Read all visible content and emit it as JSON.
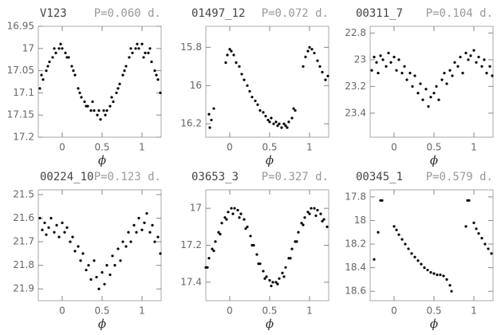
{
  "chart_data": [
    {
      "type": "scatter",
      "title": "V123",
      "subtitle": "P=0.060 d.",
      "x_label": "ϕ",
      "color": "#000000",
      "y_inverted": true,
      "xlim": [
        -0.3,
        1.24
      ],
      "xticks": [
        0,
        0.5,
        1
      ],
      "ylim": [
        16.95,
        17.2
      ],
      "yticks": [
        16.95,
        17,
        17.05,
        17.1,
        17.15,
        17.2
      ],
      "x": [
        -0.28,
        -0.24,
        -0.2,
        -0.16,
        -0.12,
        -0.08,
        -0.04,
        0,
        0.04,
        0.08,
        0.12,
        0.16,
        0.2,
        0.24,
        0.28,
        0.32,
        0.36,
        0.4,
        0.44,
        0.48,
        0.52,
        0.56,
        0.6,
        0.64,
        0.68,
        0.72,
        0.76,
        0.8,
        0.84,
        0.88,
        0.92,
        0.96,
        1,
        1.04,
        1.08,
        1.12,
        1.16,
        1.2,
        1.23,
        -0.26,
        -0.18,
        -0.1,
        -0.02,
        0.06,
        0.14,
        0.22,
        0.3,
        0.38,
        0.46,
        0.54,
        0.62,
        0.7,
        0.78,
        0.86,
        0.94,
        1.02,
        1.1,
        1.18
      ],
      "values": [
        17.09,
        17.07,
        17.05,
        17.03,
        17.02,
        17.01,
        17.0,
        17.0,
        17.01,
        17.02,
        17.04,
        17.06,
        17.09,
        17.11,
        17.12,
        17.13,
        17.14,
        17.14,
        17.15,
        17.16,
        17.14,
        17.14,
        17.13,
        17.12,
        17.1,
        17.08,
        17.06,
        17.04,
        17.02,
        17.01,
        17.0,
        17.0,
        16.99,
        17.01,
        17.01,
        17.03,
        17.05,
        17.07,
        17.1,
        17.06,
        17.04,
        17.0,
        16.99,
        17.02,
        17.05,
        17.1,
        17.13,
        17.12,
        17.14,
        17.15,
        17.11,
        17.09,
        17.05,
        17.0,
        16.99,
        17.02,
        17.0,
        17.06
      ]
    },
    {
      "type": "scatter",
      "title": "01497_12",
      "subtitle": "P=0.072 d.",
      "x_label": "ϕ",
      "color": "#000000",
      "y_inverted": true,
      "xlim": [
        -0.3,
        1.24
      ],
      "xticks": [
        0,
        0.5,
        1
      ],
      "ylim": [
        15.69,
        16.27
      ],
      "yticks": [
        15.8,
        16,
        16.2
      ],
      "x": [
        -0.26,
        -0.25,
        -0.23,
        -0.2,
        -0.05,
        -0.03,
        0,
        0.02,
        0.05,
        0.08,
        0.12,
        0.15,
        0.18,
        0.22,
        0.25,
        0.28,
        0.32,
        0.35,
        0.38,
        0.42,
        0.45,
        0.48,
        0.5,
        0.52,
        0.55,
        0.58,
        0.6,
        0.62,
        0.65,
        0.68,
        0.7,
        0.72,
        0.74,
        0.78,
        0.8,
        0.82,
        0.92,
        0.95,
        0.98,
        1.0,
        1.03,
        1.06,
        1.1,
        1.13,
        1.16,
        1.2,
        1.23
      ],
      "values": [
        16.15,
        16.22,
        16.18,
        16.12,
        15.88,
        15.84,
        15.81,
        15.82,
        15.84,
        15.88,
        15.9,
        15.94,
        15.97,
        16.0,
        16.03,
        16.06,
        16.08,
        16.1,
        16.13,
        16.14,
        16.16,
        16.18,
        16.19,
        16.17,
        16.2,
        16.19,
        16.21,
        16.2,
        16.22,
        16.2,
        16.21,
        16.22,
        16.19,
        16.17,
        16.12,
        16.13,
        15.9,
        15.85,
        15.82,
        15.8,
        15.81,
        15.83,
        15.87,
        15.9,
        15.93,
        15.97,
        15.95
      ]
    },
    {
      "type": "scatter",
      "title": "00311_7",
      "subtitle": "P=0.104 d.",
      "x_label": "ϕ",
      "color": "#000000",
      "y_inverted": true,
      "xlim": [
        -0.3,
        1.24
      ],
      "xticks": [
        0,
        0.5,
        1
      ],
      "ylim": [
        22.75,
        23.58
      ],
      "yticks": [
        22.8,
        23,
        23.2,
        23.4
      ],
      "x": [
        -0.28,
        -0.25,
        -0.22,
        -0.2,
        -0.17,
        -0.14,
        -0.1,
        -0.07,
        -0.04,
        0,
        0.03,
        0.06,
        0.1,
        0.13,
        0.16,
        0.2,
        0.23,
        0.26,
        0.3,
        0.33,
        0.36,
        0.4,
        0.43,
        0.46,
        0.5,
        0.53,
        0.56,
        0.6,
        0.63,
        0.66,
        0.7,
        0.73,
        0.76,
        0.8,
        0.83,
        0.86,
        0.9,
        0.93,
        0.96,
        1.0,
        1.03,
        1.06,
        1.1,
        1.13,
        1.16,
        1.2,
        1.23
      ],
      "values": [
        23.08,
        22.98,
        23.02,
        23.1,
        22.97,
        23.0,
        23.05,
        22.95,
        23.02,
        22.98,
        23.08,
        23.0,
        23.1,
        23.05,
        23.15,
        23.1,
        23.2,
        23.12,
        23.25,
        23.18,
        23.3,
        23.22,
        23.35,
        23.28,
        23.25,
        23.2,
        23.3,
        23.15,
        23.1,
        23.18,
        23.08,
        23.12,
        23.02,
        23.05,
        22.98,
        23.1,
        22.95,
        23.0,
        22.97,
        22.93,
        23.02,
        22.98,
        23.05,
        23.0,
        23.1,
        23.05,
        23.12
      ]
    },
    {
      "type": "scatter",
      "title": "00224_10",
      "subtitle": "P=0.123 d.",
      "x_label": "ϕ",
      "color": "#000000",
      "y_inverted": true,
      "xlim": [
        -0.3,
        1.24
      ],
      "xticks": [
        0,
        0.5,
        1
      ],
      "ylim": [
        21.48,
        21.95
      ],
      "yticks": [
        21.5,
        21.6,
        21.7,
        21.8,
        21.9
      ],
      "x": [
        -0.28,
        -0.25,
        -0.22,
        -0.2,
        -0.17,
        -0.14,
        -0.1,
        -0.07,
        -0.04,
        0,
        0.03,
        0.06,
        0.1,
        0.13,
        0.16,
        0.2,
        0.23,
        0.26,
        0.3,
        0.33,
        0.36,
        0.4,
        0.43,
        0.46,
        0.5,
        0.53,
        0.56,
        0.6,
        0.63,
        0.66,
        0.7,
        0.73,
        0.76,
        0.8,
        0.83,
        0.86,
        0.9,
        0.93,
        0.96,
        1.0,
        1.03,
        1.06,
        1.1,
        1.13,
        1.16,
        1.2,
        1.23
      ],
      "values": [
        21.6,
        21.65,
        21.62,
        21.67,
        21.64,
        21.6,
        21.66,
        21.63,
        21.68,
        21.62,
        21.66,
        21.64,
        21.7,
        21.68,
        21.74,
        21.72,
        21.78,
        21.75,
        21.82,
        21.8,
        21.86,
        21.78,
        21.85,
        21.9,
        21.83,
        21.88,
        21.8,
        21.84,
        21.76,
        21.8,
        21.73,
        21.78,
        21.7,
        21.72,
        21.66,
        21.7,
        21.63,
        21.66,
        21.6,
        21.65,
        21.62,
        21.58,
        21.66,
        21.63,
        21.7,
        21.68,
        21.75
      ]
    },
    {
      "type": "scatter",
      "title": "03653_3",
      "subtitle": "P=0.327 d.",
      "x_label": "ϕ",
      "color": "#000000",
      "y_inverted": true,
      "xlim": [
        -0.3,
        1.24
      ],
      "xticks": [
        0,
        0.5,
        1
      ],
      "ylim": [
        16.9,
        17.5
      ],
      "yticks": [
        17,
        17.2,
        17.4
      ],
      "x": [
        -0.3,
        -0.26,
        -0.22,
        -0.18,
        -0.14,
        -0.1,
        -0.06,
        -0.02,
        0.02,
        0.06,
        0.1,
        0.14,
        0.18,
        0.22,
        0.26,
        0.3,
        0.34,
        0.38,
        0.42,
        0.46,
        0.5,
        0.54,
        0.58,
        0.62,
        0.66,
        0.7,
        0.74,
        0.78,
        0.82,
        0.86,
        0.9,
        0.94,
        0.98,
        1.02,
        1.06,
        1.1,
        1.14,
        1.18,
        1.22,
        -0.28,
        -0.2,
        -0.12,
        -0.04,
        0.04,
        0.12,
        0.2,
        0.28,
        0.36,
        0.44,
        0.52,
        0.6,
        0.68,
        0.76,
        0.84,
        0.92,
        1.0,
        1.08,
        1.16
      ],
      "values": [
        17.32,
        17.27,
        17.22,
        17.18,
        17.13,
        17.08,
        17.05,
        17.02,
        17.0,
        17.0,
        17.01,
        17.03,
        17.06,
        17.1,
        17.15,
        17.2,
        17.25,
        17.3,
        17.34,
        17.37,
        17.39,
        17.4,
        17.4,
        17.38,
        17.35,
        17.32,
        17.27,
        17.22,
        17.18,
        17.13,
        17.08,
        17.05,
        17.02,
        17.0,
        17.0,
        17.01,
        17.03,
        17.06,
        17.1,
        17.32,
        17.23,
        17.14,
        17.06,
        17.03,
        17.05,
        17.11,
        17.2,
        17.3,
        17.38,
        17.42,
        17.41,
        17.37,
        17.27,
        17.18,
        17.09,
        17.03,
        17.04,
        17.07
      ]
    },
    {
      "type": "scatter",
      "title": "00345_1",
      "subtitle": "P=0.579 d.",
      "x_label": "ϕ",
      "color": "#000000",
      "y_inverted": true,
      "xlim": [
        -0.3,
        1.24
      ],
      "xticks": [
        0,
        0.5,
        1
      ],
      "ylim": [
        17.74,
        18.68
      ],
      "yticks": [
        17.8,
        18,
        18.2,
        18.4,
        18.6
      ],
      "x": [
        -0.25,
        -0.2,
        -0.17,
        -0.15,
        0.0,
        0.03,
        0.06,
        0.1,
        0.14,
        0.18,
        0.22,
        0.26,
        0.3,
        0.34,
        0.38,
        0.42,
        0.46,
        0.5,
        0.54,
        0.58,
        0.62,
        0.66,
        0.7,
        0.72,
        0.9,
        0.92,
        0.94,
        1.0,
        1.03,
        1.06,
        1.1,
        1.14,
        1.18,
        1.22
      ],
      "values": [
        18.33,
        18.1,
        17.83,
        17.83,
        18.05,
        18.08,
        18.12,
        18.16,
        18.2,
        18.24,
        18.28,
        18.31,
        18.34,
        18.37,
        18.4,
        18.42,
        18.44,
        18.45,
        18.46,
        18.46,
        18.47,
        18.5,
        18.55,
        18.6,
        18.05,
        17.83,
        17.83,
        18.02,
        18.07,
        18.11,
        18.15,
        18.2,
        18.24,
        18.28
      ]
    }
  ]
}
